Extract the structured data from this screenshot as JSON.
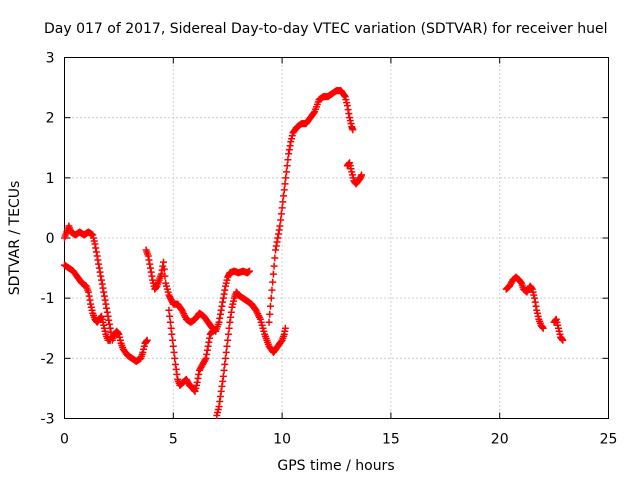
{
  "chart_data": {
    "type": "scatter",
    "title": "Day 017 of 2017, Sidereal Day-to-day VTEC variation (SDTVAR) for receiver huel",
    "xlabel": "GPS time / hours",
    "ylabel": "SDTVAR / TECUs",
    "xlim": [
      0,
      25
    ],
    "ylim": [
      -3,
      3
    ],
    "xticks": [
      "0",
      "5",
      "10",
      "15",
      "20",
      "25"
    ],
    "yticks": [
      "-3",
      "-2",
      "-1",
      "0",
      "1",
      "2",
      "3"
    ],
    "grid": true,
    "marker": "+",
    "color": "#ff0000",
    "series": [
      {
        "name": "SDTVAR",
        "segments": [
          [
            [
              0.0,
              0.0
            ],
            [
              0.1,
              0.1
            ],
            [
              0.2,
              0.2
            ],
            [
              0.3,
              0.1
            ],
            [
              0.5,
              0.05
            ],
            [
              0.7,
              0.1
            ],
            [
              0.9,
              0.05
            ],
            [
              1.1,
              0.1
            ],
            [
              1.3,
              0.05
            ],
            [
              1.4,
              -0.1
            ],
            [
              1.5,
              -0.3
            ],
            [
              1.6,
              -0.5
            ],
            [
              1.7,
              -0.7
            ],
            [
              1.8,
              -0.9
            ],
            [
              1.9,
              -1.1
            ],
            [
              2.0,
              -1.3
            ],
            [
              2.1,
              -1.5
            ],
            [
              2.2,
              -1.7
            ],
            [
              2.3,
              -1.6
            ],
            [
              2.4,
              -1.55
            ],
            [
              2.5,
              -1.6
            ],
            [
              2.6,
              -1.75
            ],
            [
              2.7,
              -1.85
            ],
            [
              2.9,
              -1.95
            ],
            [
              3.1,
              -2.0
            ],
            [
              3.3,
              -2.05
            ],
            [
              3.5,
              -2.0
            ],
            [
              3.6,
              -1.9
            ],
            [
              3.7,
              -1.75
            ],
            [
              3.8,
              -1.7
            ]
          ],
          [
            [
              0.0,
              -0.45
            ],
            [
              0.2,
              -0.5
            ],
            [
              0.4,
              -0.55
            ],
            [
              0.6,
              -0.65
            ],
            [
              0.8,
              -0.75
            ],
            [
              1.0,
              -0.8
            ],
            [
              1.1,
              -0.9
            ],
            [
              1.2,
              -1.1
            ],
            [
              1.3,
              -1.25
            ],
            [
              1.4,
              -1.35
            ],
            [
              1.5,
              -1.4
            ],
            [
              1.6,
              -1.35
            ],
            [
              1.7,
              -1.3
            ],
            [
              1.8,
              -1.45
            ],
            [
              1.9,
              -1.6
            ],
            [
              2.0,
              -1.7
            ],
            [
              2.1,
              -1.7
            ]
          ],
          [
            [
              3.75,
              -0.2
            ],
            [
              3.85,
              -0.3
            ],
            [
              3.95,
              -0.5
            ],
            [
              4.05,
              -0.7
            ],
            [
              4.15,
              -0.85
            ],
            [
              4.25,
              -0.8
            ],
            [
              4.35,
              -0.7
            ],
            [
              4.45,
              -0.6
            ],
            [
              4.55,
              -0.4
            ],
            [
              4.65,
              -0.75
            ],
            [
              4.8,
              -0.95
            ],
            [
              5.0,
              -1.1
            ],
            [
              5.2,
              -1.1
            ],
            [
              5.4,
              -1.2
            ],
            [
              5.6,
              -1.35
            ],
            [
              5.8,
              -1.4
            ],
            [
              6.0,
              -1.35
            ],
            [
              6.2,
              -1.25
            ],
            [
              6.4,
              -1.3
            ],
            [
              6.6,
              -1.4
            ],
            [
              6.8,
              -1.5
            ],
            [
              6.95,
              -1.55
            ],
            [
              7.1,
              -1.4
            ],
            [
              7.2,
              -1.2
            ],
            [
              7.3,
              -1.0
            ],
            [
              7.4,
              -0.8
            ],
            [
              7.5,
              -0.65
            ],
            [
              7.6,
              -0.58
            ],
            [
              7.8,
              -0.55
            ],
            [
              8.0,
              -0.58
            ],
            [
              8.2,
              -0.55
            ],
            [
              8.4,
              -0.58
            ],
            [
              8.5,
              -0.55
            ]
          ],
          [
            [
              4.8,
              -1.2
            ],
            [
              4.9,
              -1.5
            ],
            [
              5.0,
              -1.8
            ],
            [
              5.1,
              -2.1
            ],
            [
              5.2,
              -2.35
            ],
            [
              5.3,
              -2.45
            ],
            [
              5.45,
              -2.4
            ],
            [
              5.6,
              -2.35
            ],
            [
              5.75,
              -2.45
            ],
            [
              5.9,
              -2.5
            ],
            [
              6.0,
              -2.55
            ],
            [
              6.1,
              -2.4
            ],
            [
              6.2,
              -2.2
            ],
            [
              6.35,
              -2.1
            ],
            [
              6.5,
              -2.0
            ],
            [
              6.6,
              -1.8
            ],
            [
              6.7,
              -1.6
            ],
            [
              6.8,
              -1.55
            ]
          ],
          [
            [
              7.0,
              -2.95
            ],
            [
              7.1,
              -2.8
            ],
            [
              7.2,
              -2.55
            ],
            [
              7.3,
              -2.3
            ],
            [
              7.4,
              -2.0
            ],
            [
              7.5,
              -1.7
            ],
            [
              7.6,
              -1.4
            ],
            [
              7.7,
              -1.15
            ],
            [
              7.8,
              -1.0
            ],
            [
              7.9,
              -0.9
            ],
            [
              8.0,
              -0.95
            ],
            [
              8.2,
              -1.0
            ],
            [
              8.4,
              -1.05
            ],
            [
              8.6,
              -1.1
            ],
            [
              8.8,
              -1.2
            ],
            [
              9.0,
              -1.35
            ],
            [
              9.2,
              -1.6
            ],
            [
              9.4,
              -1.8
            ],
            [
              9.6,
              -1.9
            ],
            [
              9.8,
              -1.8
            ],
            [
              10.0,
              -1.7
            ],
            [
              10.1,
              -1.6
            ],
            [
              10.15,
              -1.5
            ]
          ],
          [
            [
              9.4,
              -1.4
            ],
            [
              9.5,
              -1.0
            ],
            [
              9.6,
              -0.6
            ],
            [
              9.7,
              -0.2
            ],
            [
              9.8,
              0.0
            ],
            [
              9.9,
              0.2
            ],
            [
              10.0,
              0.5
            ],
            [
              10.1,
              0.8
            ],
            [
              10.2,
              1.1
            ],
            [
              10.3,
              1.4
            ],
            [
              10.4,
              1.6
            ],
            [
              10.5,
              1.75
            ],
            [
              10.7,
              1.85
            ],
            [
              10.9,
              1.9
            ],
            [
              11.1,
              1.9
            ],
            [
              11.3,
              2.0
            ],
            [
              11.5,
              2.1
            ],
            [
              11.7,
              2.3
            ],
            [
              11.9,
              2.35
            ],
            [
              12.1,
              2.35
            ],
            [
              12.3,
              2.4
            ],
            [
              12.5,
              2.45
            ],
            [
              12.7,
              2.45
            ],
            [
              12.9,
              2.35
            ],
            [
              13.0,
              2.2
            ],
            [
              13.1,
              2.0
            ],
            [
              13.2,
              1.85
            ],
            [
              13.25,
              1.8
            ]
          ],
          [
            [
              13.0,
              1.2
            ],
            [
              13.1,
              1.25
            ],
            [
              13.2,
              1.1
            ],
            [
              13.3,
              0.95
            ],
            [
              13.4,
              0.9
            ],
            [
              13.5,
              0.95
            ],
            [
              13.6,
              1.0
            ],
            [
              13.65,
              1.05
            ]
          ],
          [
            [
              20.3,
              -0.85
            ],
            [
              20.45,
              -0.8
            ],
            [
              20.6,
              -0.7
            ],
            [
              20.75,
              -0.65
            ],
            [
              20.9,
              -0.7
            ],
            [
              21.0,
              -0.75
            ],
            [
              21.1,
              -0.85
            ],
            [
              21.25,
              -0.9
            ],
            [
              21.4,
              -0.8
            ],
            [
              21.5,
              -0.85
            ],
            [
              21.6,
              -1.0
            ],
            [
              21.7,
              -1.2
            ],
            [
              21.8,
              -1.35
            ],
            [
              21.9,
              -1.45
            ],
            [
              22.0,
              -1.5
            ]
          ],
          [
            [
              22.5,
              -1.4
            ],
            [
              22.6,
              -1.35
            ],
            [
              22.7,
              -1.5
            ],
            [
              22.8,
              -1.65
            ],
            [
              22.9,
              -1.7
            ]
          ]
        ]
      }
    ]
  }
}
